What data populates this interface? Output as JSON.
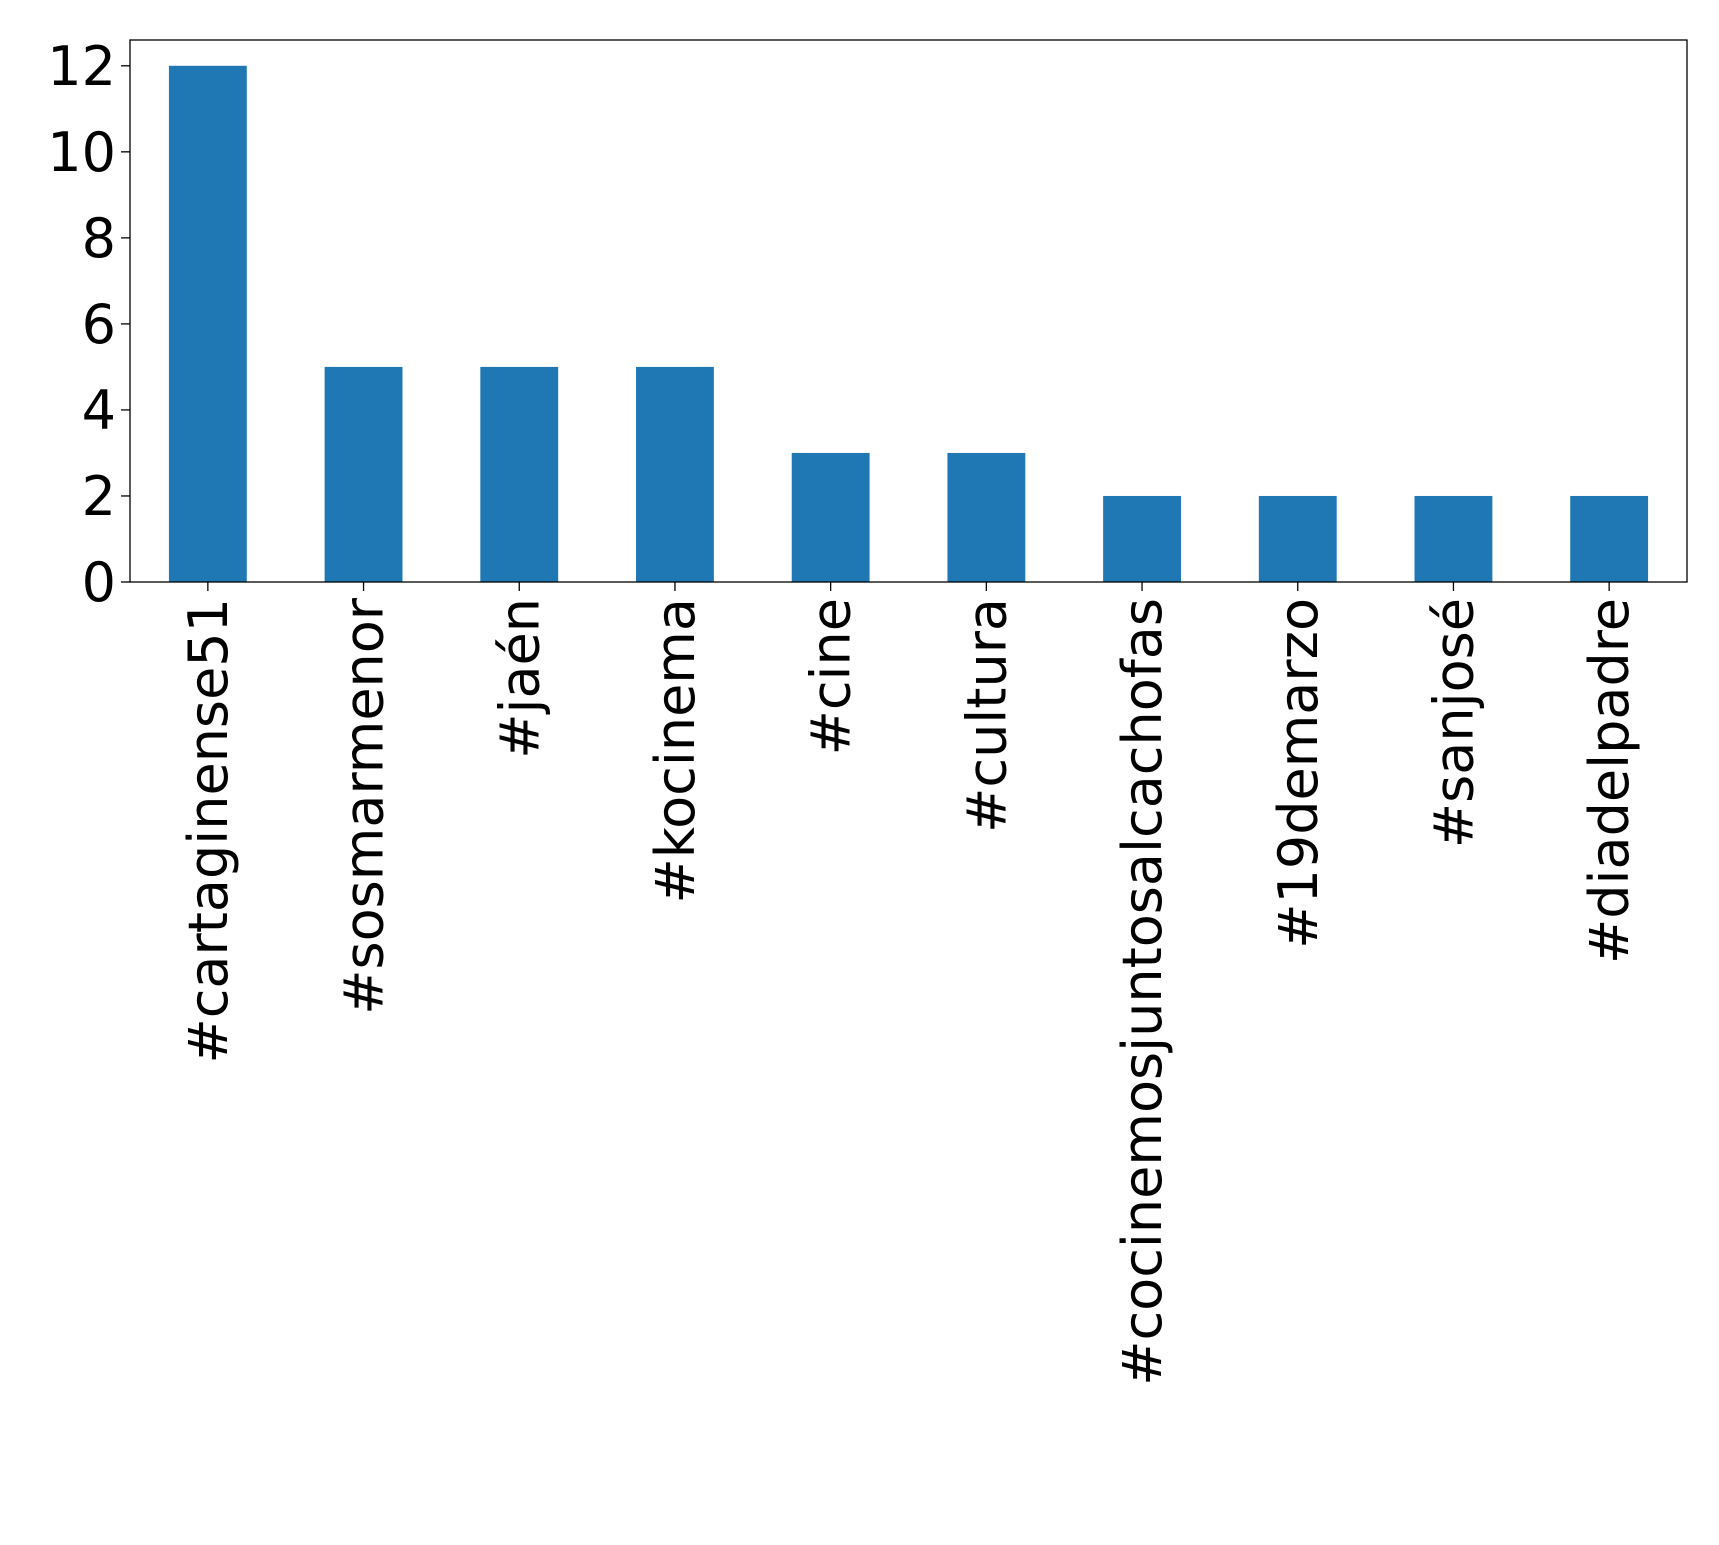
{
  "chart_data": {
    "type": "bar",
    "title": "",
    "xlabel": "",
    "ylabel": "",
    "categories": [
      "#cartaginense51",
      "#sosmarmenor",
      "#jaén",
      "#kocinema",
      "#cine",
      "#cultura",
      "#cocinemosjuntosalcachofas",
      "#19demarzo",
      "#sanjosé",
      "#diadelpadre"
    ],
    "values": [
      12,
      5,
      5,
      5,
      3,
      3,
      2,
      2,
      2,
      2
    ],
    "ylim": [
      0,
      12.6
    ],
    "yticks": [
      0,
      2,
      4,
      6,
      8,
      10,
      12
    ],
    "grid": false,
    "legend": "none",
    "bar_color": "#1f77b4"
  }
}
